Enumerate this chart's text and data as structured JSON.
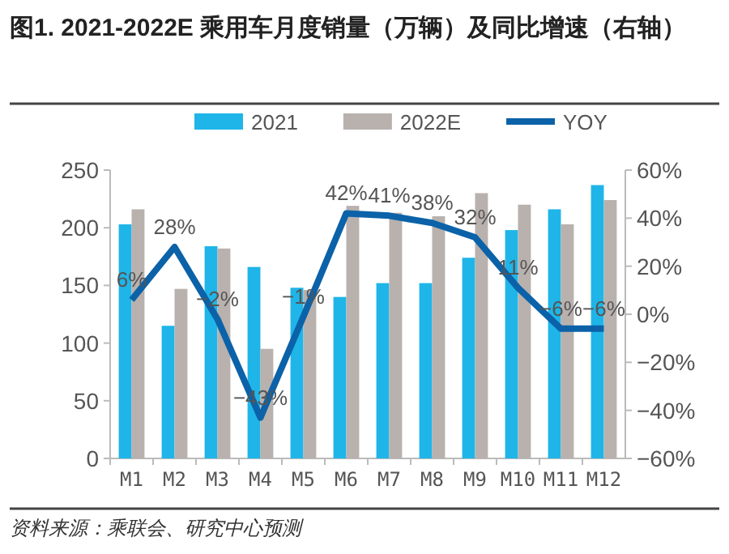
{
  "chart_data": {
    "type": "bar",
    "title": "图1. 2021-2022E 乘用车月度销量（万辆）及同比增速（右轴）",
    "categories": [
      "M1",
      "M2",
      "M3",
      "M4",
      "M5",
      "M6",
      "M7",
      "M8",
      "M9",
      "M10",
      "M11",
      "M12"
    ],
    "series": [
      {
        "name": "2021",
        "color": "#1fb5e8",
        "values": [
          203,
          115,
          184,
          166,
          148,
          140,
          152,
          152,
          174,
          198,
          216,
          237
        ]
      },
      {
        "name": "2022E",
        "color": "#b8b1ae",
        "values": [
          216,
          147,
          182,
          95,
          146,
          219,
          213,
          210,
          230,
          220,
          203,
          224
        ]
      },
      {
        "name": "YOY",
        "type": "line",
        "axis": "y2",
        "color": "#0b62a8",
        "data_labels": true,
        "value_labels": [
          "6%",
          "28%",
          "−2%",
          "−43%",
          "−1%",
          "42%",
          "41%",
          "38%",
          "32%",
          "11%",
          "−6%",
          "−6%"
        ],
        "values": [
          6,
          28,
          -2,
          -43,
          -1,
          42,
          41,
          38,
          32,
          11,
          -6,
          -6
        ]
      }
    ],
    "ylim": [
      0,
      250
    ],
    "yticks": [
      0,
      50,
      100,
      150,
      200,
      250
    ],
    "y2lim": [
      -60,
      60
    ],
    "y2ticks": [
      {
        "value": -60,
        "label": "−60%"
      },
      {
        "value": -40,
        "label": "−40%"
      },
      {
        "value": -20,
        "label": "−20%"
      },
      {
        "value": 0,
        "label": "0%"
      },
      {
        "value": 20,
        "label": "20%"
      },
      {
        "value": 40,
        "label": "40%"
      },
      {
        "value": 60,
        "label": "60%"
      }
    ],
    "legend": "top",
    "grid": false,
    "annotations": [
      "资料来源：乘联会、研究中心预测"
    ]
  }
}
